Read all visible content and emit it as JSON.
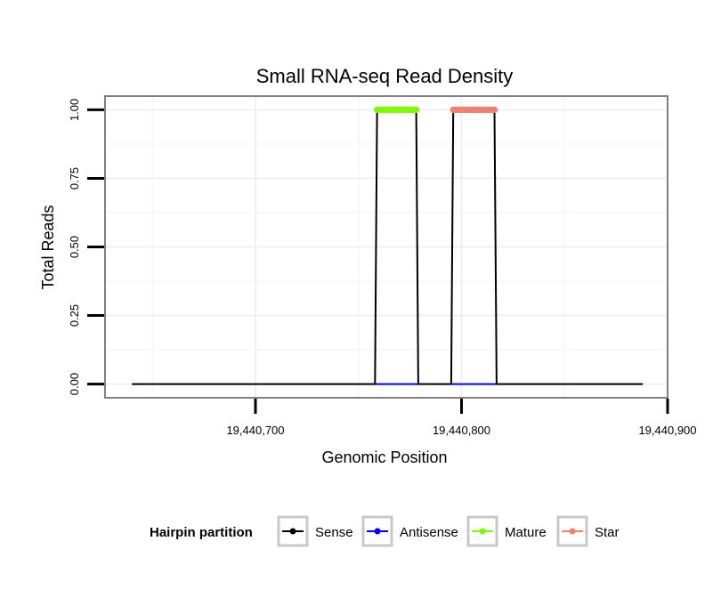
{
  "chart_data": {
    "type": "line",
    "title": "Small RNA-seq Read Density",
    "xlabel": "Genomic Position",
    "ylabel": "Total Reads",
    "xlim": [
      19440627,
      19440900
    ],
    "ylim": [
      -0.05,
      1.05
    ],
    "x_ticks": [
      19440700,
      19440800,
      19440900
    ],
    "x_tick_labels": [
      "19,440,700",
      "19,440,800",
      "19,440,900"
    ],
    "y_ticks": [
      0,
      0.25,
      0.5,
      0.75,
      1
    ],
    "y_tick_labels": [
      "0.00",
      "0.25",
      "0.50",
      "0.75",
      "1.00"
    ],
    "grid": true,
    "legend_position": "bottom",
    "legend": {
      "title": "Hairpin partition",
      "entries": [
        "Sense",
        "Antisense",
        "Mature",
        "Star"
      ]
    },
    "series": [
      {
        "name": "Sense",
        "color": "#000000",
        "x": [
          19440640,
          19440758,
          19440759,
          19440778,
          19440779,
          19440795,
          19440796,
          19440816,
          19440817,
          19440888
        ],
        "values": [
          0,
          0,
          1,
          1,
          0,
          0,
          1,
          1,
          0,
          0
        ]
      },
      {
        "name": "Antisense",
        "color": "#0000ff",
        "x": [
          19440758,
          19440779,
          19440795,
          19440817
        ],
        "values": [
          0,
          0,
          0,
          0
        ]
      },
      {
        "name": "Mature",
        "color": "#7cfc00",
        "x": [
          19440759,
          19440778
        ],
        "values": [
          1,
          1
        ]
      },
      {
        "name": "Star",
        "color": "#f08070",
        "x": [
          19440796,
          19440816
        ],
        "values": [
          1,
          1
        ]
      }
    ]
  }
}
